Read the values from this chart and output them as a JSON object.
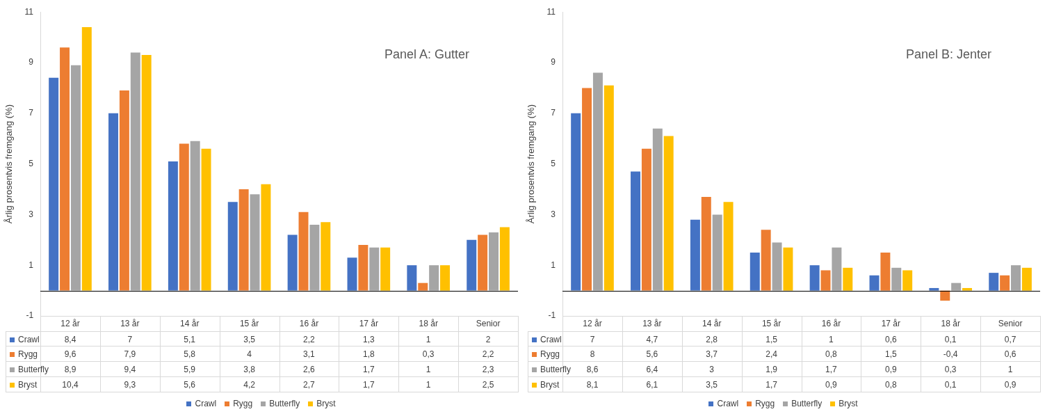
{
  "chart_data": [
    {
      "type": "bar",
      "title": "Panel A: Gutter",
      "ylabel": "Årlig prosentvis fremgang (%)",
      "categories": [
        "12 år",
        "13 år",
        "14 år",
        "15 år",
        "16 år",
        "17 år",
        "18 år",
        "Senior"
      ],
      "series": [
        {
          "name": "Crawl",
          "color": "#4472c4",
          "values": [
            8.4,
            7,
            5.1,
            3.5,
            2.2,
            1.3,
            1,
            2
          ],
          "value_labels": [
            "8,4",
            "7",
            "5,1",
            "3,5",
            "2,2",
            "1,3",
            "1",
            "2"
          ]
        },
        {
          "name": "Rygg",
          "color": "#ed7d31",
          "values": [
            9.6,
            7.9,
            5.8,
            4,
            3.1,
            1.8,
            0.3,
            2.2
          ],
          "value_labels": [
            "9,6",
            "7,9",
            "5,8",
            "4",
            "3,1",
            "1,8",
            "0,3",
            "2,2"
          ]
        },
        {
          "name": "Butterfly",
          "color": "#a5a5a5",
          "values": [
            8.9,
            9.4,
            5.9,
            3.8,
            2.6,
            1.7,
            1,
            2.3
          ],
          "value_labels": [
            "8,9",
            "9,4",
            "5,9",
            "3,8",
            "2,6",
            "1,7",
            "1",
            "2,3"
          ]
        },
        {
          "name": "Bryst",
          "color": "#ffc000",
          "values": [
            10.4,
            9.3,
            5.6,
            4.2,
            2.7,
            1.7,
            1,
            2.5
          ],
          "value_labels": [
            "10,4",
            "9,3",
            "5,6",
            "4,2",
            "2,7",
            "1,7",
            "1",
            "2,5"
          ]
        }
      ],
      "ylim": [
        -1,
        11
      ],
      "yticks": [
        -1,
        1,
        3,
        5,
        7,
        9,
        11
      ],
      "grid": false,
      "legend": "bottom"
    },
    {
      "type": "bar",
      "title": "Panel B: Jenter",
      "ylabel": "Årlig prosentvis fremgang (%)",
      "categories": [
        "12 år",
        "13 år",
        "14 år",
        "15 år",
        "16 år",
        "17 år",
        "18 år",
        "Senior"
      ],
      "series": [
        {
          "name": "Crawl",
          "color": "#4472c4",
          "values": [
            7,
            4.7,
            2.8,
            1.5,
            1,
            0.6,
            0.1,
            0.7
          ],
          "value_labels": [
            "7",
            "4,7",
            "2,8",
            "1,5",
            "1",
            "0,6",
            "0,1",
            "0,7"
          ]
        },
        {
          "name": "Rygg",
          "color": "#ed7d31",
          "values": [
            8,
            5.6,
            3.7,
            2.4,
            0.8,
            1.5,
            -0.4,
            0.6
          ],
          "value_labels": [
            "8",
            "5,6",
            "3,7",
            "2,4",
            "0,8",
            "1,5",
            "-0,4",
            "0,6"
          ]
        },
        {
          "name": "Butterfly",
          "color": "#a5a5a5",
          "values": [
            8.6,
            6.4,
            3,
            1.9,
            1.7,
            0.9,
            0.3,
            1
          ],
          "value_labels": [
            "8,6",
            "6,4",
            "3",
            "1,9",
            "1,7",
            "0,9",
            "0,3",
            "1"
          ]
        },
        {
          "name": "Bryst",
          "color": "#ffc000",
          "values": [
            8.1,
            6.1,
            3.5,
            1.7,
            0.9,
            0.8,
            0.1,
            0.9
          ],
          "value_labels": [
            "8,1",
            "6,1",
            "3,5",
            "1,7",
            "0,9",
            "0,8",
            "0,1",
            "0,9"
          ]
        }
      ],
      "ylim": [
        -1,
        11
      ],
      "yticks": [
        -1,
        1,
        3,
        5,
        7,
        9,
        11
      ],
      "grid": false,
      "legend": "bottom"
    }
  ]
}
